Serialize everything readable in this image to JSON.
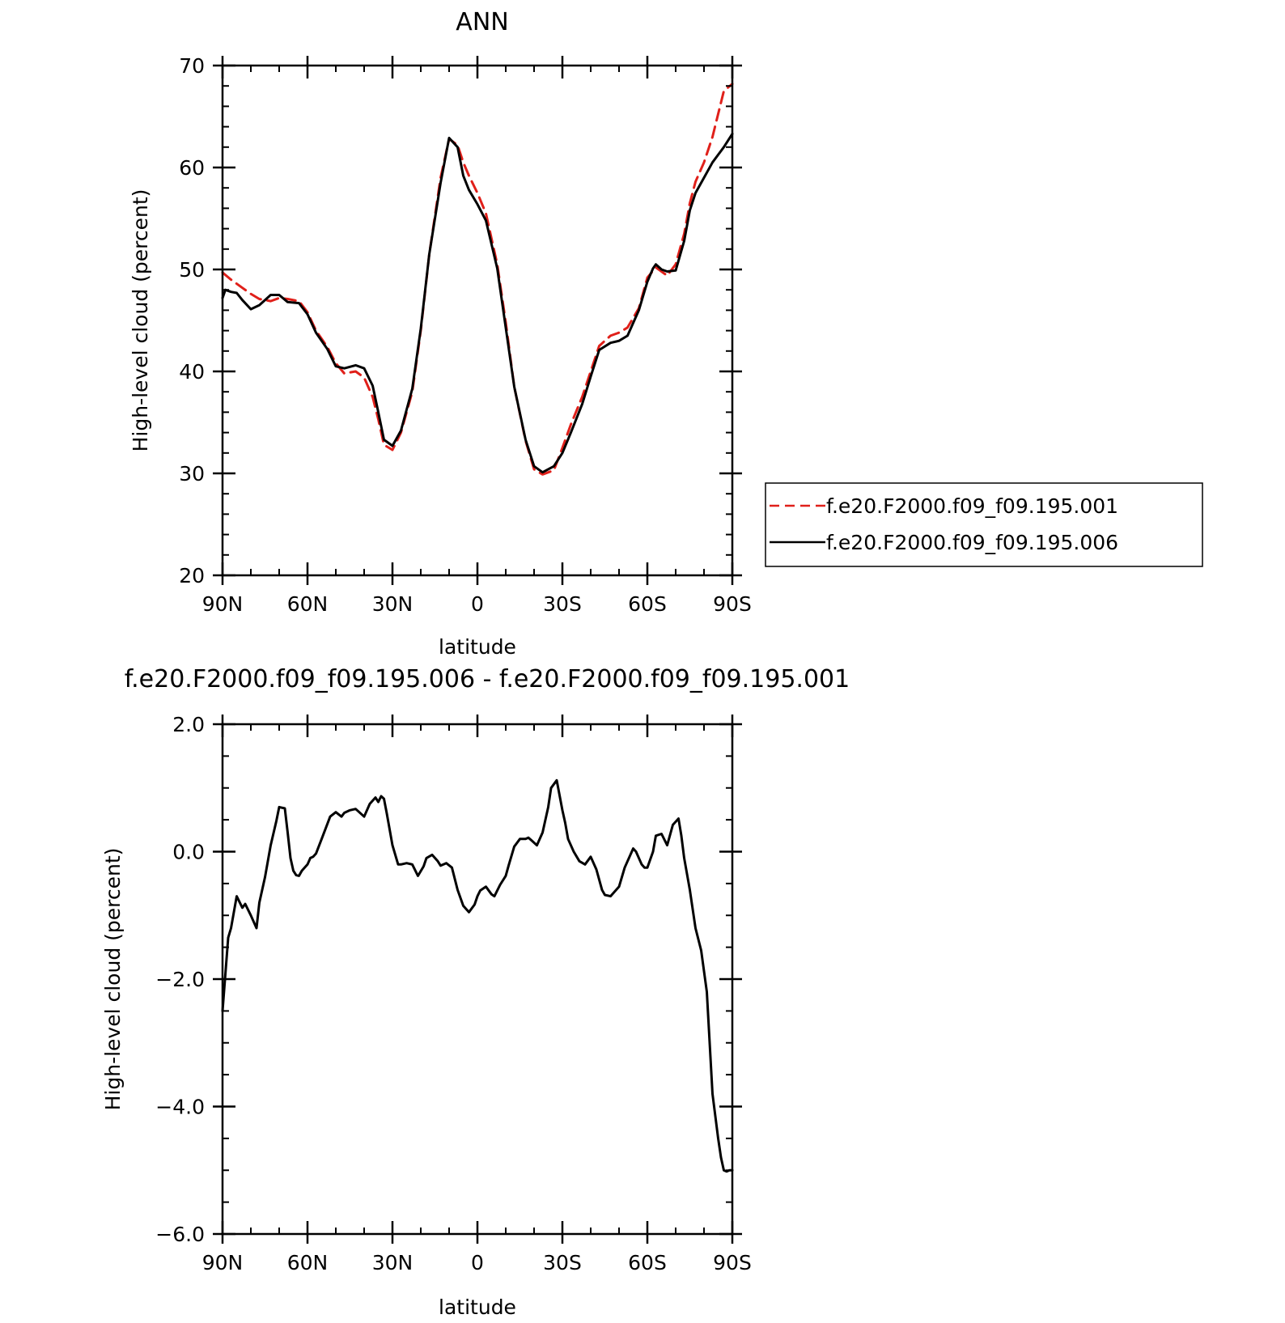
{
  "colors": {
    "control": "#e0201a",
    "test": "#000000",
    "axis": "#000000"
  },
  "chart_data": [
    {
      "type": "line",
      "title": "ANN",
      "xlabel": "latitude",
      "ylabel": "High-level cloud (percent)",
      "xlim": [
        90,
        -90
      ],
      "ylim": [
        20,
        70
      ],
      "x_tick_values": [
        90,
        60,
        30,
        0,
        -30,
        -60,
        -90
      ],
      "x_tick_labels": [
        "90N",
        "60N",
        "30N",
        "0",
        "30S",
        "60S",
        "90S"
      ],
      "y_tick_values": [
        20,
        30,
        40,
        50,
        60,
        70
      ],
      "y_tick_labels": [
        "20",
        "30",
        "40",
        "50",
        "60",
        "70"
      ],
      "legend": {
        "placement": "right",
        "entries": [
          "f.e20.F2000.f09_f09.195.001",
          "f.e20.F2000.f09_f09.195.006"
        ]
      },
      "series": [
        {
          "name": "f.e20.F2000.f09_f09.195.001",
          "style": "dashed",
          "color": "#e0201a",
          "x": [
            90,
            87,
            83,
            80,
            77,
            73,
            70,
            67,
            63,
            60,
            57,
            53,
            50,
            47,
            43,
            40,
            37,
            35,
            33,
            30,
            27,
            23,
            20,
            17,
            13,
            10,
            7,
            5,
            3,
            0,
            -3,
            -7,
            -10,
            -13,
            -17,
            -20,
            -23,
            -27,
            -30,
            -33,
            -37,
            -40,
            -43,
            -47,
            -50,
            -53,
            -57,
            -60,
            -63,
            -67,
            -70,
            -73,
            -75,
            -77,
            -80,
            -83,
            -87,
            -90
          ],
          "y": [
            49.7,
            49,
            48.2,
            47.6,
            47.1,
            46.9,
            47.2,
            47.1,
            46.9,
            45.8,
            44,
            42.4,
            40.8,
            39.8,
            40.0,
            39.4,
            37.5,
            35.3,
            32.8,
            32.3,
            34.0,
            38.0,
            44.0,
            51.5,
            59.0,
            62.8,
            62.2,
            60.5,
            59.2,
            57.5,
            55.5,
            50.5,
            44.8,
            38.5,
            33.2,
            30.4,
            29.9,
            30.3,
            32.5,
            34.8,
            37.5,
            40.0,
            42.5,
            43.5,
            43.8,
            44.3,
            46.2,
            49.2,
            50.2,
            49.4,
            50.5,
            53.5,
            56.5,
            58.6,
            60.5,
            63.0,
            67.5,
            68.2
          ]
        },
        {
          "name": "f.e20.F2000.f09_f09.195.006",
          "style": "solid",
          "color": "#000000",
          "x": [
            90,
            89,
            87,
            85,
            83,
            80,
            77,
            73,
            70,
            67,
            63,
            60,
            57,
            53,
            50,
            47,
            43,
            40,
            37,
            35,
            33,
            30,
            27,
            23,
            20,
            17,
            13,
            10,
            7,
            5,
            3,
            0,
            -3,
            -7,
            -10,
            -13,
            -17,
            -20,
            -23,
            -27,
            -30,
            -33,
            -37,
            -40,
            -43,
            -47,
            -50,
            -53,
            -57,
            -60,
            -62,
            -63,
            -65,
            -67,
            -70,
            -73,
            -75,
            -77,
            -80,
            -83,
            -87,
            -90
          ],
          "y": [
            47.2,
            48.0,
            47.8,
            47.7,
            47.0,
            46.1,
            46.5,
            47.5,
            47.5,
            46.8,
            46.7,
            45.6,
            43.8,
            42.2,
            40.5,
            40.3,
            40.6,
            40.3,
            38.6,
            36.0,
            33.3,
            32.7,
            34.2,
            38.3,
            44.2,
            51.5,
            58.5,
            62.9,
            62.0,
            59.2,
            57.8,
            56.4,
            54.8,
            50.1,
            44.3,
            38.5,
            33.3,
            30.7,
            30.1,
            30.7,
            32.0,
            34.0,
            36.8,
            39.5,
            42.1,
            42.8,
            43.0,
            43.5,
            46.0,
            48.8,
            50.1,
            50.5,
            50.0,
            49.8,
            49.9,
            52.8,
            55.8,
            57.5,
            59.0,
            60.5,
            62.0,
            63.3
          ]
        }
      ]
    },
    {
      "type": "line",
      "title": "f.e20.F2000.f09_f09.195.006 - f.e20.F2000.f09_f09.195.001",
      "xlabel": "latitude",
      "ylabel": "High-level cloud (percent)",
      "xlim": [
        90,
        -90
      ],
      "ylim": [
        -6,
        2
      ],
      "x_tick_values": [
        90,
        60,
        30,
        0,
        -30,
        -60,
        -90
      ],
      "x_tick_labels": [
        "90N",
        "60N",
        "30N",
        "0",
        "30S",
        "60S",
        "90S"
      ],
      "y_tick_values": [
        2,
        0,
        -2,
        -4,
        -6
      ],
      "y_tick_labels": [
        "2.0",
        "0.0",
        "−2.0",
        "−4.0",
        "−6.0"
      ],
      "series": [
        {
          "color": "#000000",
          "x": [
            90,
            88,
            87,
            85,
            83,
            82,
            80,
            78,
            77,
            75,
            73,
            71,
            70,
            68,
            67,
            66,
            65,
            64,
            63,
            62,
            60,
            59,
            58,
            57,
            55,
            52,
            50,
            48,
            47,
            45,
            43,
            40,
            38,
            36,
            35,
            34,
            33,
            32,
            30,
            28,
            27,
            25,
            23,
            21,
            19,
            18,
            16,
            14,
            13,
            11,
            9,
            7,
            5,
            3,
            1,
            0,
            -1,
            -3,
            -5,
            -6,
            -8,
            -10,
            -11,
            -13,
            -15,
            -17,
            -18,
            -19,
            -21,
            -23,
            -25,
            -26,
            -28,
            -30,
            -31,
            -32,
            -34,
            -36,
            -38,
            -40,
            -42,
            -44,
            -45,
            -47,
            -50,
            -52,
            -55,
            -56,
            -58,
            -59,
            -60,
            -62,
            -63,
            -65,
            -67,
            -69,
            -71,
            -72,
            -73,
            -75,
            -77,
            -79,
            -81,
            -82,
            -83,
            -85,
            -86,
            -87,
            -88,
            -89,
            -90
          ],
          "y": [
            -2.5,
            -1.35,
            -1.2,
            -0.7,
            -0.88,
            -0.82,
            -1.0,
            -1.2,
            -0.8,
            -0.4,
            0.1,
            0.48,
            0.7,
            0.68,
            0.3,
            -0.1,
            -0.3,
            -0.37,
            -0.38,
            -0.3,
            -0.2,
            -0.1,
            -0.08,
            -0.03,
            0.2,
            0.55,
            0.62,
            0.55,
            0.61,
            0.65,
            0.67,
            0.55,
            0.75,
            0.85,
            0.78,
            0.87,
            0.83,
            0.6,
            0.1,
            -0.2,
            -0.2,
            -0.18,
            -0.2,
            -0.38,
            -0.23,
            -0.1,
            -0.05,
            -0.15,
            -0.22,
            -0.18,
            -0.25,
            -0.6,
            -0.85,
            -0.95,
            -0.83,
            -0.7,
            -0.61,
            -0.55,
            -0.67,
            -0.7,
            -0.52,
            -0.38,
            -0.22,
            0.08,
            0.2,
            0.2,
            0.22,
            0.18,
            0.1,
            0.3,
            0.7,
            1.0,
            1.12,
            0.65,
            0.45,
            0.2,
            0.0,
            -0.15,
            -0.2,
            -0.08,
            -0.28,
            -0.6,
            -0.68,
            -0.7,
            -0.55,
            -0.25,
            0.05,
            0.0,
            -0.2,
            -0.25,
            -0.25,
            0.0,
            0.25,
            0.28,
            0.1,
            0.42,
            0.52,
            0.25,
            -0.1,
            -0.6,
            -1.2,
            -1.55,
            -2.2,
            -3.0,
            -3.8,
            -4.5,
            -4.8,
            -5.0,
            -5.02,
            -5.0,
            -5.0
          ]
        }
      ]
    }
  ]
}
